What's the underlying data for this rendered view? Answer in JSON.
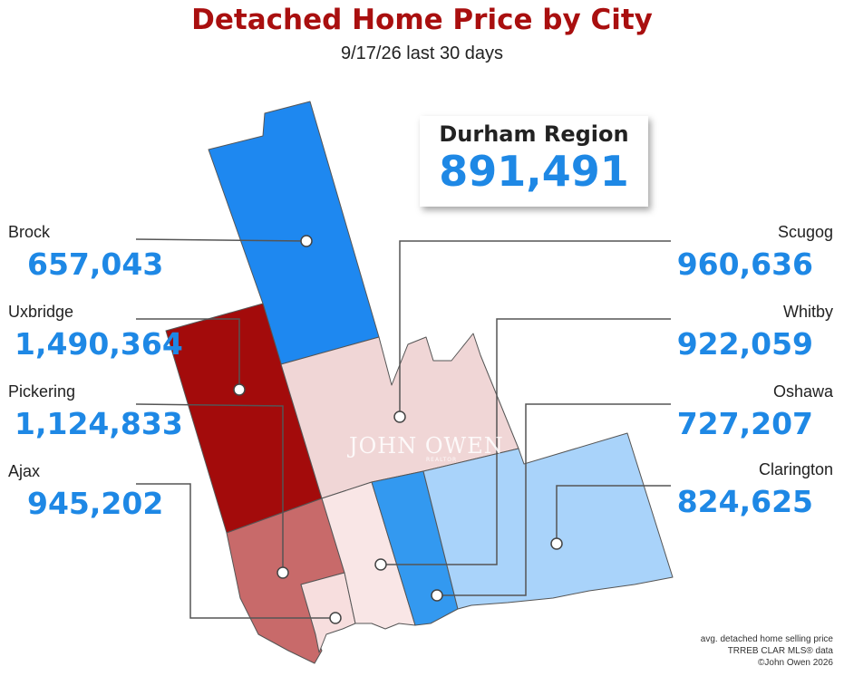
{
  "header": {
    "title": "Detached Home Price by City",
    "subtitle": "9/17/26  last 30 days"
  },
  "region_summary": {
    "name": "Durham Region",
    "value": "891,491"
  },
  "cities": {
    "brock": {
      "name": "Brock",
      "value": "657,043",
      "color": "#1e88f0"
    },
    "uxbridge": {
      "name": "Uxbridge",
      "value": "1,490,364",
      "color": "#a30b0b"
    },
    "pickering": {
      "name": "Pickering",
      "value": "1,124,833",
      "color": "#c86a6a"
    },
    "ajax": {
      "name": "Ajax",
      "value": "945,202",
      "color": "#f7dede"
    },
    "scugog": {
      "name": "Scugog",
      "value": "960,636",
      "color": "#f0d6d6"
    },
    "whitby": {
      "name": "Whitby",
      "value": "922,059",
      "color": "#f9e6e6"
    },
    "oshawa": {
      "name": "Oshawa",
      "value": "727,207",
      "color": "#3399f0"
    },
    "clarington": {
      "name": "Clarington",
      "value": "824,625",
      "color": "#a9d3fa"
    }
  },
  "watermark": {
    "brand": "JOHN OWEN",
    "sub": "REALTOR"
  },
  "footnote": {
    "line1": "avg. detached home selling price",
    "line2": "TRREB CLAR MLS® data",
    "line3": "©John Owen 2026"
  }
}
